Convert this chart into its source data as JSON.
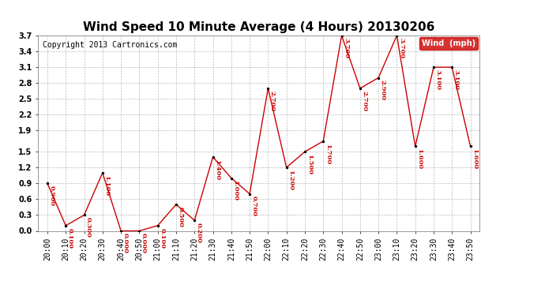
{
  "title": "Wind Speed 10 Minute Average (4 Hours) 20130206",
  "copyright": "Copyright 2013 Cartronics.com",
  "legend_label": "Wind  (mph)",
  "x_labels": [
    "20:00",
    "20:10",
    "20:20",
    "20:30",
    "20:40",
    "20:50",
    "21:00",
    "21:10",
    "21:20",
    "21:30",
    "21:40",
    "21:50",
    "22:00",
    "22:10",
    "22:20",
    "22:30",
    "22:40",
    "22:50",
    "23:00",
    "23:10",
    "23:20",
    "23:30",
    "23:40",
    "23:50"
  ],
  "y_values": [
    0.9,
    0.1,
    0.3,
    1.1,
    0.0,
    0.0,
    0.1,
    0.5,
    0.2,
    1.4,
    1.0,
    0.7,
    2.7,
    1.2,
    1.5,
    1.7,
    3.7,
    2.7,
    2.9,
    3.7,
    1.6,
    3.1,
    3.1,
    1.6
  ],
  "y_tick_vals": [
    0.0,
    0.3,
    0.6,
    0.9,
    1.2,
    1.5,
    1.9,
    2.2,
    2.5,
    2.8,
    3.1,
    3.4,
    3.7
  ],
  "y_tick_labels": [
    "0.0",
    "0.3",
    "0.6",
    "0.9",
    "1.2",
    "1.5",
    "1.9",
    "2.2",
    "2.5",
    "2.8",
    "3.1",
    "3.4",
    "3.7"
  ],
  "ylim_min": 0.0,
  "ylim_max": 3.7,
  "line_color": "#cc0000",
  "marker_color": "#000000",
  "label_color": "#cc0000",
  "bg_color": "#ffffff",
  "grid_color": "#bbbbbb",
  "title_fontsize": 11,
  "copyright_fontsize": 7,
  "tick_fontsize": 7,
  "annotation_fontsize": 6,
  "legend_bg": "#cc0000",
  "legend_text_color": "#ffffff",
  "legend_fontsize": 7
}
